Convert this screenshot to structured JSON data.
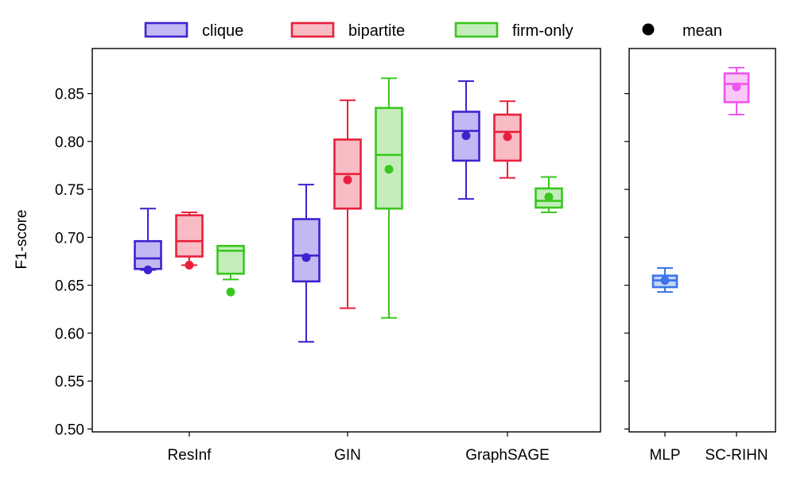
{
  "chart_data": {
    "type": "box",
    "ylabel": "F1-score",
    "ylim": [
      0.497,
      0.897
    ],
    "yticks": [
      0.5,
      0.55,
      0.6,
      0.65,
      0.7,
      0.75,
      0.8,
      0.85
    ],
    "ytick_labels": [
      "0.50",
      "0.55",
      "0.60",
      "0.65",
      "0.70",
      "0.75",
      "0.80",
      "0.85"
    ],
    "legend": [
      {
        "name": "clique",
        "kind": "box",
        "color": "#3d22d0",
        "fill": "#c2b9f2"
      },
      {
        "name": "bipartite",
        "kind": "box",
        "color": "#e8203c",
        "fill": "#f9bcc4"
      },
      {
        "name": "firm-only",
        "kind": "box",
        "color": "#3ac61f",
        "fill": "#c4edbb"
      },
      {
        "name": "mean",
        "kind": "dot",
        "color": "#000000"
      }
    ],
    "series_styles": {
      "clique": {
        "color": "#3d22d0",
        "fill": "#c2b9f2"
      },
      "bipartite": {
        "color": "#e8203c",
        "fill": "#f9bcc4"
      },
      "firm-only": {
        "color": "#3ac61f",
        "fill": "#c4edbb"
      },
      "MLP": {
        "color": "#3a74e8",
        "fill": "#c3d5f8"
      },
      "SC-RIHN": {
        "color": "#ee55ee",
        "fill": "#fac9fa"
      }
    },
    "panels": [
      {
        "categories": [
          "ResInf",
          "GIN",
          "GraphSAGE"
        ],
        "groups": [
          {
            "category": "ResInf",
            "boxes": [
              {
                "series": "clique",
                "min": 0.666,
                "q1": 0.667,
                "median": 0.678,
                "q3": 0.696,
                "max": 0.73,
                "mean": 0.666
              },
              {
                "series": "bipartite",
                "min": 0.671,
                "q1": 0.68,
                "median": 0.696,
                "q3": 0.723,
                "max": 0.726,
                "mean": 0.671
              },
              {
                "series": "firm-only",
                "min": 0.656,
                "q1": 0.662,
                "median": 0.686,
                "q3": 0.691,
                "max": 0.691,
                "mean": 0.643
              }
            ]
          },
          {
            "category": "GIN",
            "boxes": [
              {
                "series": "clique",
                "min": 0.591,
                "q1": 0.654,
                "median": 0.681,
                "q3": 0.719,
                "max": 0.755,
                "mean": 0.679
              },
              {
                "series": "bipartite",
                "min": 0.626,
                "q1": 0.73,
                "median": 0.766,
                "q3": 0.802,
                "max": 0.843,
                "mean": 0.76
              },
              {
                "series": "firm-only",
                "min": 0.616,
                "q1": 0.73,
                "median": 0.786,
                "q3": 0.835,
                "max": 0.866,
                "mean": 0.771
              }
            ]
          },
          {
            "category": "GraphSAGE",
            "boxes": [
              {
                "series": "clique",
                "min": 0.74,
                "q1": 0.78,
                "median": 0.811,
                "q3": 0.831,
                "max": 0.863,
                "mean": 0.806
              },
              {
                "series": "bipartite",
                "min": 0.762,
                "q1": 0.78,
                "median": 0.81,
                "q3": 0.828,
                "max": 0.842,
                "mean": 0.805
              },
              {
                "series": "firm-only",
                "min": 0.726,
                "q1": 0.731,
                "median": 0.738,
                "q3": 0.751,
                "max": 0.763,
                "mean": 0.742
              }
            ]
          }
        ]
      },
      {
        "categories": [
          "MLP",
          "SC-RIHN"
        ],
        "groups": [
          {
            "category": "MLP",
            "boxes": [
              {
                "series": "MLP",
                "min": 0.643,
                "q1": 0.648,
                "median": 0.655,
                "q3": 0.66,
                "max": 0.668,
                "mean": 0.655
              }
            ]
          },
          {
            "category": "SC-RIHN",
            "boxes": [
              {
                "series": "SC-RIHN",
                "min": 0.828,
                "q1": 0.841,
                "median": 0.86,
                "q3": 0.871,
                "max": 0.877,
                "mean": 0.857
              }
            ]
          }
        ]
      }
    ]
  }
}
